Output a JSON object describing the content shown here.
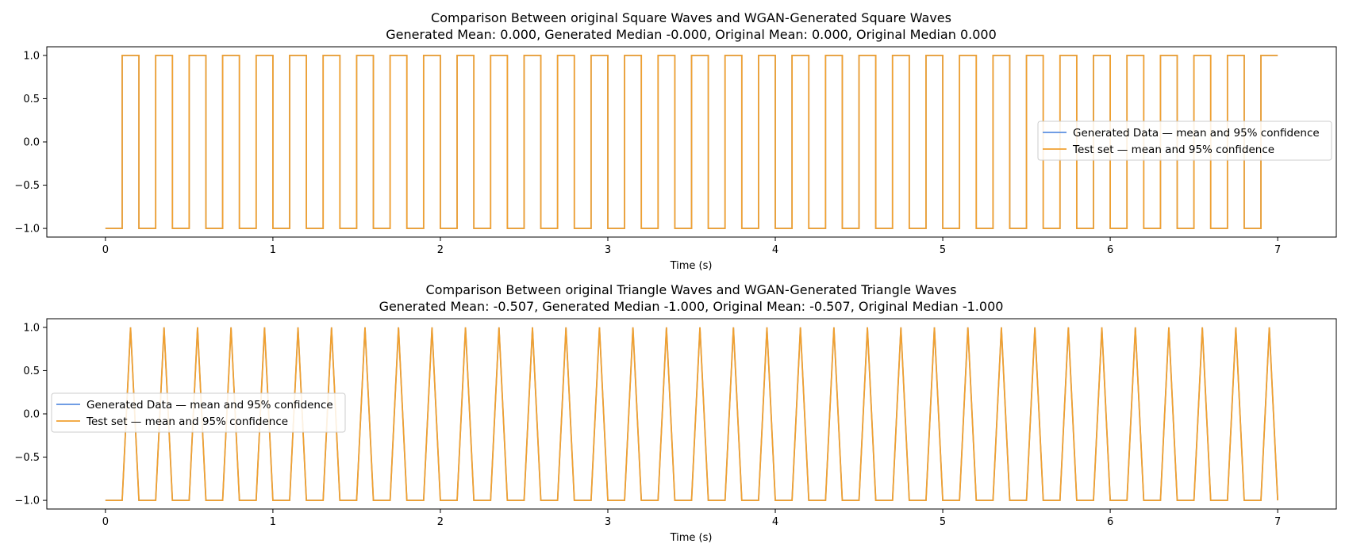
{
  "chart_data": [
    {
      "type": "line",
      "title_line1": "Comparison Between original Square Waves and WGAN-Generated Square Waves",
      "title_line2": "Generated Mean: 0.000, Generated Median -0.000, Original Mean: 0.000, Original Median 0.000",
      "xlabel": "Time (s)",
      "ylabel": "",
      "xlim": [
        -0.35,
        7.35
      ],
      "ylim": [
        -1.1,
        1.1
      ],
      "xticks": [
        0,
        1,
        2,
        3,
        4,
        5,
        6,
        7
      ],
      "xtick_labels": [
        "0",
        "1",
        "2",
        "3",
        "4",
        "5",
        "6",
        "7"
      ],
      "yticks": [
        1.0,
        0.5,
        0.0,
        -0.5,
        -1.0
      ],
      "ytick_labels": [
        "1.0",
        "0.5",
        "0.0",
        "−0.5",
        "−1.0"
      ],
      "grid": false,
      "legend_position": "center-right",
      "waveform": "square",
      "waveform_params": {
        "t_start": 0,
        "t_end": 7,
        "period": 0.2,
        "high_start": 0.1,
        "high_end": 0.2,
        "low": -1.0,
        "high": 1.0
      },
      "series": [
        {
          "name": "Generated Data — mean and 95% confidence",
          "color": "#5b8fe0"
        },
        {
          "name": "Test set — mean and 95% confidence",
          "color": "#f0a030"
        }
      ]
    },
    {
      "type": "line",
      "title_line1": "Comparison Between original Triangle Waves and WGAN-Generated Triangle Waves",
      "title_line2": "Generated Mean: -0.507, Generated Median -1.000, Original Mean: -0.507, Original Median -1.000",
      "xlabel": "Time (s)",
      "ylabel": "",
      "xlim": [
        -0.35,
        7.35
      ],
      "ylim": [
        -1.1,
        1.1
      ],
      "xticks": [
        0,
        1,
        2,
        3,
        4,
        5,
        6,
        7
      ],
      "xtick_labels": [
        "0",
        "1",
        "2",
        "3",
        "4",
        "5",
        "6",
        "7"
      ],
      "yticks": [
        1.0,
        0.5,
        0.0,
        -0.5,
        -1.0
      ],
      "ytick_labels": [
        "1.0",
        "0.5",
        "0.0",
        "−0.5",
        "−1.0"
      ],
      "grid": false,
      "legend_position": "center-left",
      "waveform": "triangle",
      "waveform_params": {
        "t_start": 0,
        "t_end": 7,
        "period": 0.2,
        "rise_start": 0.1,
        "peak": 0.15,
        "fall_end": 0.2,
        "low": -1.0,
        "high": 1.0
      },
      "series": [
        {
          "name": "Generated Data — mean and 95% confidence",
          "color": "#5b8fe0"
        },
        {
          "name": "Test set — mean and 95% confidence",
          "color": "#f0a030"
        }
      ]
    }
  ]
}
